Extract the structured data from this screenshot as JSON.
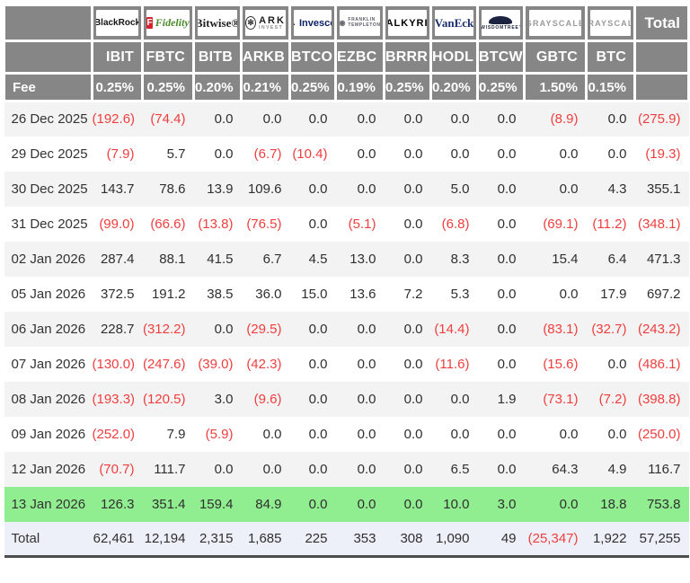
{
  "table": {
    "fee_label": "Fee",
    "total_label": "Total",
    "providers": [
      {
        "id": "blackrock",
        "logo_text": "BlackRock",
        "ticker": "IBIT",
        "fee": "0.25%"
      },
      {
        "id": "fidelity",
        "logo_icon": "F",
        "logo_text": "Fidelity",
        "ticker": "FBTC",
        "fee": "0.25%"
      },
      {
        "id": "bitwise",
        "logo_text": "Bitwise®",
        "ticker": "BITB",
        "fee": "0.20%"
      },
      {
        "id": "ark",
        "logo_icon": "✻",
        "logo_text": "ARK",
        "logo_sub": "INVEST",
        "ticker": "ARKB",
        "fee": "0.21%"
      },
      {
        "id": "invesco",
        "logo_icon": "▲",
        "logo_text": "Invesco",
        "ticker": "BTCO",
        "fee": "0.25%"
      },
      {
        "id": "franklin",
        "logo_icon": "◉",
        "logo_text": "FRANKLIN",
        "logo_sub": "TEMPLETON",
        "ticker": "EZBC",
        "fee": "0.19%"
      },
      {
        "id": "valkyrie",
        "logo_text": "VALKYRIE",
        "ticker": "BRRR",
        "fee": "0.25%"
      },
      {
        "id": "vaneck",
        "logo_text": "VanEck",
        "ticker": "HODL",
        "fee": "0.20%"
      },
      {
        "id": "wisdomtree",
        "logo_text": "WISDOMTREE’",
        "ticker": "BTCW",
        "fee": "0.25%"
      },
      {
        "id": "grayscale-gbtc",
        "logo_text": "GRAYSCALE",
        "ticker": "GBTC",
        "fee": "1.50%"
      },
      {
        "id": "grayscale-btc",
        "logo_text": "GRAYSCALE",
        "ticker": "BTC",
        "fee": "0.15%"
      }
    ],
    "rows": [
      {
        "date": "26 Dec 2025",
        "values": [
          "(192.6)",
          "(74.4)",
          "0.0",
          "0.0",
          "0.0",
          "0.0",
          "0.0",
          "0.0",
          "0.0",
          "(8.9)",
          "0.0"
        ],
        "total": "(275.9)",
        "highlight": false
      },
      {
        "date": "29 Dec 2025",
        "values": [
          "(7.9)",
          "5.7",
          "0.0",
          "(6.7)",
          "(10.4)",
          "0.0",
          "0.0",
          "0.0",
          "0.0",
          "0.0",
          "0.0"
        ],
        "total": "(19.3)",
        "highlight": false
      },
      {
        "date": "30 Dec 2025",
        "values": [
          "143.7",
          "78.6",
          "13.9",
          "109.6",
          "0.0",
          "0.0",
          "0.0",
          "5.0",
          "0.0",
          "0.0",
          "4.3"
        ],
        "total": "355.1",
        "highlight": false
      },
      {
        "date": "31 Dec 2025",
        "values": [
          "(99.0)",
          "(66.6)",
          "(13.8)",
          "(76.5)",
          "0.0",
          "(5.1)",
          "0.0",
          "(6.8)",
          "0.0",
          "(69.1)",
          "(11.2)"
        ],
        "total": "(348.1)",
        "highlight": false
      },
      {
        "date": "02 Jan 2026",
        "values": [
          "287.4",
          "88.1",
          "41.5",
          "6.7",
          "4.5",
          "13.0",
          "0.0",
          "8.3",
          "0.0",
          "15.4",
          "6.4"
        ],
        "total": "471.3",
        "highlight": false
      },
      {
        "date": "05 Jan 2026",
        "values": [
          "372.5",
          "191.2",
          "38.5",
          "36.0",
          "15.0",
          "13.6",
          "7.2",
          "5.3",
          "0.0",
          "0.0",
          "17.9"
        ],
        "total": "697.2",
        "highlight": false
      },
      {
        "date": "06 Jan 2026",
        "values": [
          "228.7",
          "(312.2)",
          "0.0",
          "(29.5)",
          "0.0",
          "0.0",
          "0.0",
          "(14.4)",
          "0.0",
          "(83.1)",
          "(32.7)"
        ],
        "total": "(243.2)",
        "highlight": false
      },
      {
        "date": "07 Jan 2026",
        "values": [
          "(130.0)",
          "(247.6)",
          "(39.0)",
          "(42.3)",
          "0.0",
          "0.0",
          "0.0",
          "(11.6)",
          "0.0",
          "(15.6)",
          "0.0"
        ],
        "total": "(486.1)",
        "highlight": false
      },
      {
        "date": "08 Jan 2026",
        "values": [
          "(193.3)",
          "(120.5)",
          "3.0",
          "(9.6)",
          "0.0",
          "0.0",
          "0.0",
          "0.0",
          "1.9",
          "(73.1)",
          "(7.2)"
        ],
        "total": "(398.8)",
        "highlight": false
      },
      {
        "date": "09 Jan 2026",
        "values": [
          "(252.0)",
          "7.9",
          "(5.9)",
          "0.0",
          "0.0",
          "0.0",
          "0.0",
          "0.0",
          "0.0",
          "0.0",
          "0.0"
        ],
        "total": "(250.0)",
        "highlight": false
      },
      {
        "date": "12 Jan 2026",
        "values": [
          "(70.7)",
          "111.7",
          "0.0",
          "0.0",
          "0.0",
          "0.0",
          "0.0",
          "6.5",
          "0.0",
          "64.3",
          "4.9"
        ],
        "total": "116.7",
        "highlight": false
      },
      {
        "date": "13 Jan 2026",
        "values": [
          "126.3",
          "351.4",
          "159.4",
          "84.9",
          "0.0",
          "0.0",
          "0.0",
          "10.0",
          "3.0",
          "0.0",
          "18.8"
        ],
        "total": "753.8",
        "highlight": true
      }
    ],
    "totals": {
      "label": "Total",
      "values": [
        "62,461",
        "12,194",
        "2,315",
        "1,685",
        "225",
        "353",
        "308",
        "1,090",
        "49",
        "(25,347)",
        "1,922"
      ],
      "total": "57,255"
    }
  },
  "colors": {
    "header_gray": "#868686",
    "stripe": "#f3f3f3",
    "negative_red": "#f03e3e",
    "highlight_green": "#90ee90",
    "totals_bg": "#edf0f9"
  }
}
